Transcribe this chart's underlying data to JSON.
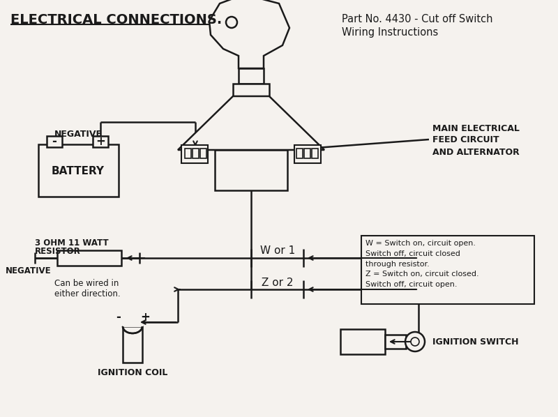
{
  "title": "ELECTRICAL CONNECTIONS.",
  "subtitle1": "Part No. 4430 - Cut off Switch",
  "subtitle2": "Wiring Instructions",
  "bg_color": "#f5f2ee",
  "line_color": "#1a1a1a",
  "text_color": "#1a1a1a",
  "labels": {
    "negative_top": "NEGATIVE",
    "battery": "BATTERY",
    "resistor_line1": "3 OHM 11 WATT",
    "resistor_line2": "RESISTOR",
    "negative_bot": "NEGATIVE",
    "can_be_wired": "Can be wired in\neither direction.",
    "w_or_1": "W or 1",
    "z_or_2": "Z or 2",
    "main_elec_line1": "MAIN ELECTRICAL",
    "main_elec_line2": "FEED CIRCUIT",
    "and_alt": "AND ALTERNATOR",
    "ignition_coil": "IGNITION COIL",
    "ignition_switch": "IGNITION SWITCH",
    "legend": "W = Switch on, circuit open.\nSwitch off, circuit closed\nthrough resistor.\nZ = Switch on, circuit closed.\nSwitch off, circuit open."
  }
}
